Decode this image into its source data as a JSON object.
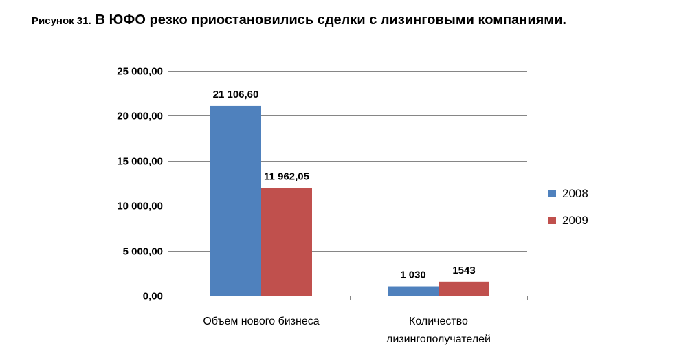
{
  "figure": {
    "number_label": "Рисунок 31.",
    "title": "В ЮФО резко приостановились сделки с лизинговыми компаниями."
  },
  "chart_data": {
    "type": "bar",
    "title": "В ЮФО резко приостановились сделки с лизинговыми компаниями.",
    "categories": [
      "Объем нового бизнеса",
      "Количество лизингополучателей"
    ],
    "category_lines": [
      [
        "Объем нового бизнеса"
      ],
      [
        "Количество",
        "лизингополучателей"
      ]
    ],
    "series": [
      {
        "name": "2008",
        "color": "#4f81bd",
        "values": [
          21106.6,
          1030
        ],
        "labels": [
          "21 106,60",
          "1 030"
        ]
      },
      {
        "name": "2009",
        "color": "#c0504d",
        "values": [
          11962.05,
          1543
        ],
        "labels": [
          "11 962,05",
          "1543"
        ]
      }
    ],
    "xlabel": "",
    "ylabel": "",
    "ylim": [
      0,
      25000
    ],
    "yticks": [
      0,
      5000,
      10000,
      15000,
      20000,
      25000
    ],
    "ytick_labels": [
      "0,00",
      "5 000,00",
      "10 000,00",
      "15 000,00",
      "20 000,00",
      "25 000,00"
    ],
    "grid": true,
    "legend_position": "right",
    "gridline_color": "#868686",
    "axis_color": "#868686"
  }
}
